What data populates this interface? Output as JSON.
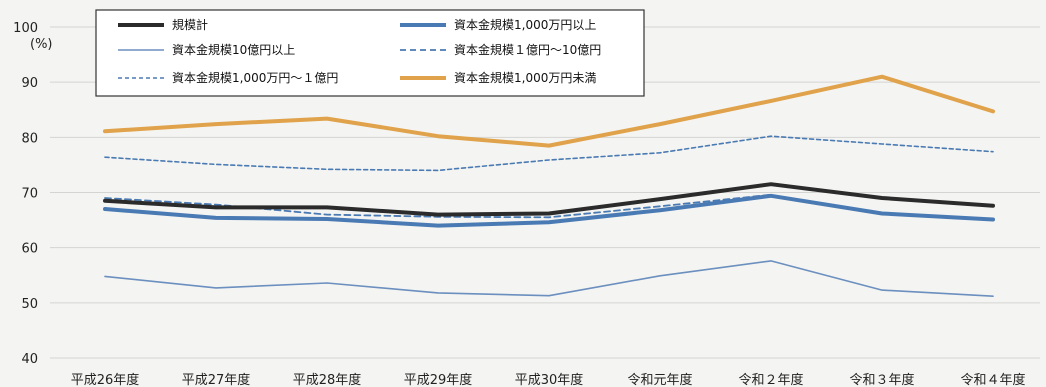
{
  "chart_data": {
    "type": "line",
    "title": "",
    "xlabel": "",
    "ylabel": "",
    "y_unit": "(%)",
    "ylim": [
      40,
      100
    ],
    "yticks": [
      40,
      50,
      60,
      70,
      80,
      90,
      100
    ],
    "grid": true,
    "legend_position": "top-left",
    "categories": [
      "平成26年度",
      "平成27年度",
      "平成28年度",
      "平成29年度",
      "平成30年度",
      "令和元年度",
      "令和２年度",
      "令和３年度",
      "令和４年度"
    ],
    "series": [
      {
        "name": "規模計",
        "color": "#2b2b2b",
        "style": "solid-thick",
        "values": [
          68.5,
          67.3,
          67.3,
          66.0,
          66.2,
          68.8,
          71.5,
          69.0,
          67.6
        ]
      },
      {
        "name": "資本金規模1,000万円以上",
        "color": "#4a7ab3",
        "style": "solid-thick",
        "values": [
          67.0,
          65.4,
          65.2,
          64.0,
          64.6,
          66.8,
          69.4,
          66.2,
          65.1
        ]
      },
      {
        "name": "資本金規模10億円以上",
        "color": "#6b8fbf",
        "style": "solid-thin",
        "values": [
          54.8,
          52.7,
          53.6,
          51.8,
          51.3,
          54.9,
          57.6,
          52.3,
          51.2
        ]
      },
      {
        "name": "資本金規模１億円〜10億円",
        "color": "#4a7ab3",
        "style": "dashed",
        "values": [
          69.0,
          67.8,
          66.0,
          65.6,
          65.5,
          67.5,
          69.6,
          null,
          null
        ]
      },
      {
        "name": "資本金規模1,000万円〜１億円",
        "color": "#4a7ab3",
        "style": "dashed-fine",
        "values": [
          76.4,
          75.1,
          74.2,
          74.0,
          75.9,
          77.2,
          80.2,
          78.8,
          77.4
        ]
      },
      {
        "name": "資本金規模1,000万円未満",
        "color": "#e0a24a",
        "style": "solid-thick",
        "values": [
          81.1,
          82.4,
          83.4,
          80.2,
          78.5,
          82.4,
          86.6,
          91.0,
          84.7
        ]
      }
    ]
  }
}
